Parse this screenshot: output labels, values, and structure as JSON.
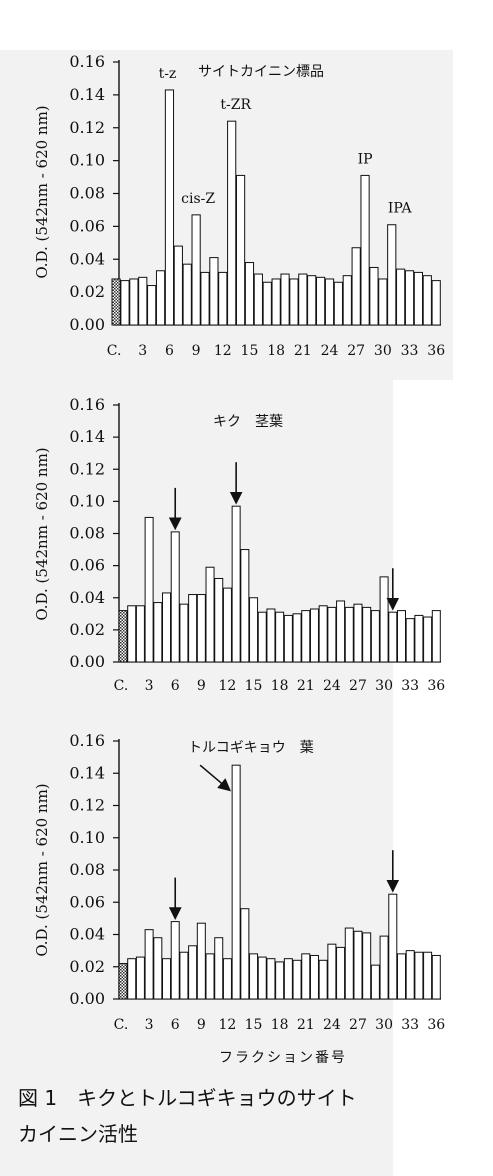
{
  "caption": {
    "line1": "図 1　キクとトルコギキョウのサイト",
    "line2": "カイニン活性"
  },
  "chart_data": [
    {
      "type": "bar",
      "title": "サイトカイニン標品",
      "ylabel": "O.D. (542nm - 620 nm)",
      "xlabel": "",
      "ylim": [
        0,
        0.16
      ],
      "yticks": [
        "0.00",
        "0.02",
        "0.04",
        "0.06",
        "0.08",
        "0.10",
        "0.12",
        "0.14",
        "0.16"
      ],
      "xticks": [
        "C.",
        "3",
        "6",
        "9",
        "12",
        "15",
        "18",
        "21",
        "24",
        "27",
        "30",
        "33",
        "36"
      ],
      "control_value": 0.028,
      "values": [
        0.027,
        0.028,
        0.029,
        0.024,
        0.033,
        0.143,
        0.048,
        0.037,
        0.067,
        0.032,
        0.041,
        0.032,
        0.124,
        0.091,
        0.038,
        0.031,
        0.026,
        0.028,
        0.031,
        0.028,
        0.031,
        0.03,
        0.029,
        0.028,
        0.026,
        0.03,
        0.047,
        0.091,
        0.035,
        0.028,
        0.061,
        0.034,
        0.033,
        0.032,
        0.03,
        0.027
      ],
      "annotations": [
        {
          "text": "t-z",
          "fraction": 6
        },
        {
          "text": "cis-Z",
          "fraction": 9
        },
        {
          "text": "t-ZR",
          "fraction": 13
        },
        {
          "text": "IP",
          "fraction": 28
        },
        {
          "text": "IPA",
          "fraction": 31
        }
      ]
    },
    {
      "type": "bar",
      "title": "キク　茎葉",
      "ylabel": "O.D. (542nm - 620 nm)",
      "xlabel": "",
      "ylim": [
        0,
        0.16
      ],
      "yticks": [
        "0.00",
        "0.02",
        "0.04",
        "0.06",
        "0.08",
        "0.10",
        "0.12",
        "0.14",
        "0.16"
      ],
      "xticks": [
        "C.",
        "3",
        "6",
        "9",
        "12",
        "15",
        "18",
        "21",
        "24",
        "27",
        "30",
        "33",
        "36"
      ],
      "control_value": 0.032,
      "values": [
        0.035,
        0.035,
        0.09,
        0.037,
        0.043,
        0.081,
        0.036,
        0.042,
        0.042,
        0.059,
        0.052,
        0.046,
        0.097,
        0.07,
        0.04,
        0.031,
        0.033,
        0.031,
        0.029,
        0.03,
        0.032,
        0.033,
        0.035,
        0.034,
        0.038,
        0.034,
        0.036,
        0.034,
        0.032,
        0.053,
        0.031,
        0.032,
        0.027,
        0.029,
        0.028,
        0.032
      ],
      "arrows_at": [
        6,
        13,
        31
      ]
    },
    {
      "type": "bar",
      "title": "トルコギキョウ　葉",
      "ylabel": "O.D. (542nm - 620 nm)",
      "xlabel": "フラクション番号",
      "ylim": [
        0,
        0.16
      ],
      "yticks": [
        "0.00",
        "0.02",
        "0.04",
        "0.06",
        "0.08",
        "0.10",
        "0.12",
        "0.14",
        "0.16"
      ],
      "xticks": [
        "C.",
        "3",
        "6",
        "9",
        "12",
        "15",
        "18",
        "21",
        "24",
        "27",
        "30",
        "33",
        "36"
      ],
      "control_value": 0.022,
      "values": [
        0.025,
        0.026,
        0.043,
        0.038,
        0.025,
        0.048,
        0.029,
        0.033,
        0.047,
        0.028,
        0.038,
        0.025,
        0.145,
        0.056,
        0.028,
        0.026,
        0.025,
        0.023,
        0.025,
        0.024,
        0.028,
        0.027,
        0.024,
        0.034,
        0.032,
        0.044,
        0.042,
        0.041,
        0.021,
        0.039,
        0.065,
        0.028,
        0.03,
        0.029,
        0.029,
        0.027
      ],
      "arrows_at": [
        6,
        13,
        31
      ]
    }
  ]
}
